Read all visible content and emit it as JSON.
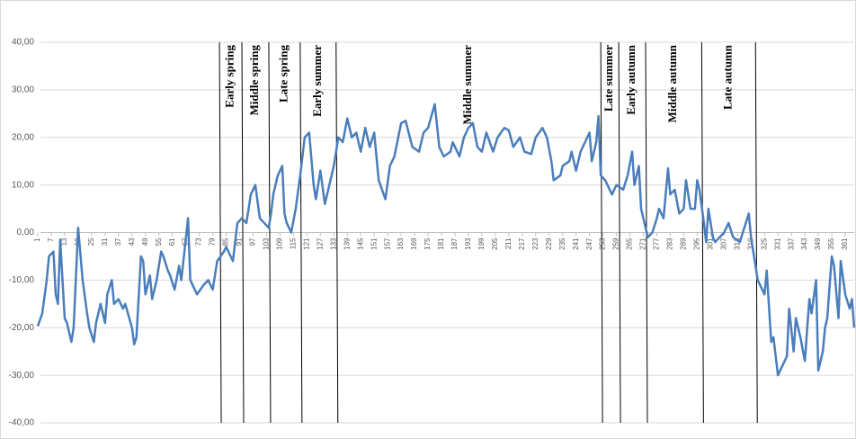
{
  "chart_data": {
    "type": "line",
    "x": [
      1,
      3,
      5,
      6,
      8,
      9,
      10,
      11,
      13,
      14,
      16,
      17,
      19,
      21,
      23,
      24,
      26,
      27,
      29,
      31,
      32,
      34,
      35,
      37,
      39,
      40,
      43,
      44,
      45,
      47,
      48,
      49,
      51,
      52,
      54,
      56,
      57,
      59,
      60,
      62,
      64,
      65,
      68,
      69,
      71,
      72,
      75,
      77,
      79,
      81,
      84,
      85,
      88,
      90,
      92,
      94,
      96,
      98,
      100,
      102,
      104,
      105,
      106,
      108,
      110,
      111,
      112,
      114,
      116,
      118,
      120,
      122,
      124,
      125,
      127,
      129,
      131,
      133,
      135,
      137,
      139,
      141,
      143,
      145,
      147,
      149,
      151,
      153,
      156,
      158,
      160,
      163,
      165,
      168,
      171,
      173,
      175,
      178,
      180,
      182,
      185,
      186,
      189,
      191,
      193,
      195,
      197,
      199,
      201,
      204,
      206,
      209,
      211,
      213,
      216,
      218,
      221,
      223,
      226,
      228,
      230,
      231,
      234,
      235,
      238,
      239,
      241,
      243,
      246,
      247,
      248,
      250,
      251,
      252,
      254,
      257,
      259,
      262,
      264,
      266,
      267,
      269,
      270,
      271,
      273,
      275,
      277,
      278,
      280,
      282,
      283,
      285,
      287,
      289,
      290,
      292,
      294,
      295,
      296,
      298,
      299,
      300,
      302,
      303,
      305,
      307,
      309,
      311,
      314,
      316,
      318,
      319,
      322,
      324,
      325,
      326,
      328,
      329,
      331,
      333,
      335,
      336,
      338,
      339,
      341,
      343,
      345,
      346,
      348,
      349,
      351,
      352,
      353,
      355,
      356,
      358,
      359,
      361,
      363,
      364,
      365
    ],
    "series": [
      {
        "color": "#4a7ebb",
        "values": [
          -19.7,
          -17,
          -10,
          -5,
          -4,
          -13,
          -15,
          -1.5,
          -18,
          -19,
          -23,
          -20,
          1,
          -10,
          -17,
          -20,
          -23,
          -19,
          -15,
          -19,
          -13,
          -10,
          -15,
          -14,
          -16,
          -15,
          -20,
          -23.5,
          -22,
          -5,
          -6,
          -13,
          -9,
          -14,
          -10,
          -4,
          -5,
          -8,
          -9,
          -12,
          -7,
          -10,
          3,
          -10,
          -12,
          -13,
          -11,
          -10,
          -12,
          -6,
          -4,
          -3,
          -6,
          2,
          3,
          2,
          8,
          10,
          3,
          2,
          1,
          4,
          8,
          12,
          14,
          4,
          2,
          0,
          5,
          12,
          20,
          21,
          10,
          7,
          13,
          6,
          10,
          14,
          20,
          19,
          24,
          20,
          21,
          17,
          22,
          18,
          21,
          11,
          7,
          14,
          16,
          23,
          23.5,
          18,
          17,
          21,
          22,
          27,
          18,
          16,
          17,
          19,
          16,
          20,
          22,
          23,
          18,
          17,
          21,
          17,
          20,
          22,
          21.5,
          18,
          20,
          17,
          16.5,
          20,
          22,
          20,
          15,
          11,
          12,
          14,
          15,
          17,
          13,
          17,
          20,
          21,
          15,
          19,
          24.5,
          12,
          11,
          8,
          10,
          9,
          12,
          17,
          10,
          14,
          5,
          3,
          -1,
          0,
          3,
          5,
          3,
          13.5,
          8,
          9,
          4,
          5,
          11,
          5,
          5,
          11,
          9,
          2,
          -2,
          5,
          -1,
          -2,
          -1,
          0,
          2,
          -1,
          -2,
          1,
          4,
          -1,
          -10,
          -12,
          -13,
          -8,
          -23,
          -22,
          -30,
          -28,
          -26,
          -16,
          -25,
          -18,
          -22,
          -27,
          -14,
          -17,
          -10,
          -29,
          -25,
          -20,
          -18,
          -5,
          -7,
          -18,
          -6,
          -13,
          -16,
          -14,
          -20
        ]
      }
    ],
    "xlim": [
      1,
      365
    ],
    "xticks": [
      1,
      7,
      13,
      19,
      25,
      31,
      37,
      43,
      49,
      55,
      61,
      67,
      73,
      79,
      85,
      91,
      97,
      103,
      109,
      115,
      121,
      127,
      133,
      139,
      145,
      151,
      157,
      163,
      169,
      175,
      181,
      187,
      193,
      199,
      205,
      211,
      217,
      223,
      229,
      235,
      241,
      247,
      253,
      259,
      265,
      271,
      277,
      283,
      289,
      295,
      301,
      307,
      313,
      319,
      325,
      331,
      337,
      343,
      349,
      355,
      361
    ],
    "ylim": [
      -40,
      40
    ],
    "yticks": [
      {
        "value": -40,
        "label": "-40,00"
      },
      {
        "value": -30,
        "label": "-30,00"
      },
      {
        "value": -20,
        "label": "-20,00"
      },
      {
        "value": -10,
        "label": "-10,00"
      },
      {
        "value": 0,
        "label": "0,00"
      },
      {
        "value": 10,
        "label": "10,00"
      },
      {
        "value": 20,
        "label": "20,00"
      },
      {
        "value": 30,
        "label": "30,00"
      },
      {
        "value": 40,
        "label": "40,00"
      }
    ],
    "grid": true,
    "boundaries": [
      82,
      92,
      104,
      118,
      134,
      252,
      260,
      272,
      297,
      321
    ],
    "season_labels": [
      "Early spring",
      "Middle spring",
      "Late spring",
      "Early summer",
      "Middle summer",
      "Late summer",
      "Early autumn",
      "Middle autumn",
      "Late autumn"
    ]
  }
}
